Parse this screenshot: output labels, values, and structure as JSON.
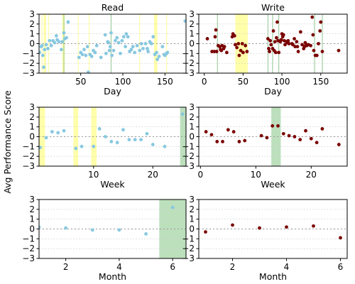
{
  "figure": {
    "ylabel": "Avg Performance Score",
    "colors": {
      "read": "#87c8e0",
      "write": "#7a0000",
      "yellow": "#ffffa0",
      "green": "#b5dcb5",
      "vline_green": "#8fc48f",
      "vline_yellow": "#ffff99"
    }
  },
  "chart_data": [
    {
      "type": "scatter",
      "title": "Read",
      "xlabel": "Day",
      "ylabel": "",
      "xlim": [
        0.5,
        175
      ],
      "ylim": [
        -3,
        3
      ],
      "xticks": [
        50,
        100,
        150
      ],
      "yticks": [
        -3,
        -2,
        -1,
        0,
        1,
        2,
        3
      ],
      "color": "read",
      "bands": [
        {
          "x0": 6,
          "x1": 9,
          "color": "yellow"
        },
        {
          "x0": 28,
          "x1": 31,
          "color": "yellow"
        },
        {
          "x0": 137,
          "x1": 141,
          "color": "yellow"
        }
      ],
      "vlines": [
        {
          "x": 30,
          "color": "vline_green"
        },
        {
          "x": 86,
          "color": "vline_green"
        },
        {
          "x": 4,
          "color": "vline_yellow"
        },
        {
          "x": 12,
          "color": "vline_yellow"
        },
        {
          "x": 47,
          "color": "vline_yellow"
        },
        {
          "x": 60,
          "color": "vline_yellow"
        },
        {
          "x": 120,
          "color": "vline_yellow"
        },
        {
          "x": 152,
          "color": "vline_yellow"
        }
      ],
      "points": [
        [
          1,
          -0.9
        ],
        [
          3,
          -0.3
        ],
        [
          4,
          -0.2
        ],
        [
          5,
          -1.2
        ],
        [
          6,
          -2.4
        ],
        [
          7,
          -0.6
        ],
        [
          9,
          -0.1
        ],
        [
          11,
          -0.5
        ],
        [
          13,
          0.3
        ],
        [
          15,
          -0.2
        ],
        [
          17,
          0.3
        ],
        [
          19,
          0.1
        ],
        [
          21,
          0.8
        ],
        [
          22,
          0.4
        ],
        [
          24,
          0.2
        ],
        [
          27,
          -0.6
        ],
        [
          28,
          0.2
        ],
        [
          30,
          1.1
        ],
        [
          31,
          0.5
        ],
        [
          33,
          0.6
        ],
        [
          35,
          2.2
        ],
        [
          48,
          -1.4
        ],
        [
          50,
          -0.9
        ],
        [
          52,
          -1.1
        ],
        [
          54,
          -0.6
        ],
        [
          56,
          -1.2
        ],
        [
          58,
          -0.3
        ],
        [
          59,
          -2.9
        ],
        [
          61,
          -1.1
        ],
        [
          63,
          -1.3
        ],
        [
          65,
          -0.7
        ],
        [
          67,
          -0.9
        ],
        [
          69,
          -0.2
        ],
        [
          74,
          -1.4
        ],
        [
          79,
          0.9
        ],
        [
          80,
          -1.0
        ],
        [
          82,
          0.2
        ],
        [
          83,
          0.1
        ],
        [
          84,
          -0.7
        ],
        [
          85,
          -0.3
        ],
        [
          86,
          1.1
        ],
        [
          87,
          -1.2
        ],
        [
          89,
          -0.7
        ],
        [
          91,
          0.3
        ],
        [
          93,
          0.6
        ],
        [
          95,
          0.1
        ],
        [
          97,
          -1.0
        ],
        [
          99,
          0.3
        ],
        [
          101,
          0.7
        ],
        [
          103,
          -0.3
        ],
        [
          104,
          1.0
        ],
        [
          106,
          0.7
        ],
        [
          108,
          -0.8
        ],
        [
          110,
          -0.6
        ],
        [
          112,
          -0.3
        ],
        [
          114,
          -0.9
        ],
        [
          117,
          -0.2
        ],
        [
          120,
          -0.7
        ],
        [
          122,
          0.0
        ],
        [
          124,
          -0.5
        ],
        [
          127,
          0.0
        ],
        [
          129,
          -0.5
        ],
        [
          130,
          -0.8
        ],
        [
          132,
          0.2
        ],
        [
          134,
          0.0
        ],
        [
          136,
          0.7
        ],
        [
          138,
          -1.1
        ],
        [
          140,
          -0.9
        ],
        [
          141,
          -1.6
        ],
        [
          143,
          -1.3
        ],
        [
          147,
          -0.3
        ],
        [
          149,
          -1.1
        ],
        [
          150,
          -1.2
        ],
        [
          152,
          -1.0
        ],
        [
          153,
          -0.9
        ],
        [
          174,
          2.3
        ]
      ]
    },
    {
      "type": "scatter",
      "title": "Write",
      "xlabel": "Day",
      "ylabel": "",
      "xlim": [
        -7,
        184
      ],
      "ylim": [
        -3,
        3
      ],
      "xticks": [
        0,
        50,
        100,
        150
      ],
      "yticks": [
        -3,
        -2,
        -1,
        0,
        1,
        2,
        3
      ],
      "color": "write",
      "bands": [
        {
          "x0": 40,
          "x1": 56,
          "color": "yellow"
        }
      ],
      "vlines": [
        {
          "x": 17,
          "color": "vline_green"
        },
        {
          "x": 82,
          "color": "vline_green"
        },
        {
          "x": 88,
          "color": "vline_green"
        },
        {
          "x": 96,
          "color": "vline_green"
        },
        {
          "x": 142,
          "color": "vline_green"
        },
        {
          "x": 152,
          "color": "vline_green"
        }
      ],
      "points": [
        [
          4,
          0.5
        ],
        [
          10,
          -0.8
        ],
        [
          13,
          -0.8
        ],
        [
          14,
          0.7
        ],
        [
          15,
          1.4
        ],
        [
          16,
          -0.8
        ],
        [
          18,
          -0.2
        ],
        [
          20,
          -0.3
        ],
        [
          21,
          -0.6
        ],
        [
          22,
          -0.7
        ],
        [
          23,
          -0.2
        ],
        [
          25,
          -0.5
        ],
        [
          26,
          -0.3
        ],
        [
          29,
          -0.9
        ],
        [
          36,
          0.7
        ],
        [
          37,
          1.0
        ],
        [
          39,
          0.8
        ],
        [
          40,
          -0.1
        ],
        [
          42,
          -0.4
        ],
        [
          44,
          0.0
        ],
        [
          45,
          -1.2
        ],
        [
          47,
          -0.7
        ],
        [
          49,
          0.0
        ],
        [
          50,
          -0.9
        ],
        [
          53,
          -0.2
        ],
        [
          55,
          -0.8
        ],
        [
          82,
          0.5
        ],
        [
          83,
          -0.5
        ],
        [
          84,
          -0.8
        ],
        [
          85,
          0.3
        ],
        [
          86,
          -0.1
        ],
        [
          88,
          -0.5
        ],
        [
          89,
          1.3
        ],
        [
          90,
          -0.7
        ],
        [
          91,
          0.2
        ],
        [
          92,
          -0.9
        ],
        [
          93,
          0.6
        ],
        [
          94,
          2.2
        ],
        [
          95,
          0.3
        ],
        [
          96,
          -0.9
        ],
        [
          98,
          0.2
        ],
        [
          99,
          0.4
        ],
        [
          100,
          1.0
        ],
        [
          101,
          0.7
        ],
        [
          102,
          0.9
        ],
        [
          103,
          0.3
        ],
        [
          104,
          -0.1
        ],
        [
          106,
          0.2
        ],
        [
          107,
          0.1
        ],
        [
          108,
          0.3
        ],
        [
          109,
          0.0
        ],
        [
          113,
          0.0
        ],
        [
          114,
          -0.1
        ],
        [
          116,
          0.5
        ],
        [
          117,
          -0.3
        ],
        [
          119,
          0.2
        ],
        [
          120,
          -0.3
        ],
        [
          121,
          -0.8
        ],
        [
          124,
          1.2
        ],
        [
          126,
          -0.1
        ],
        [
          128,
          -0.5
        ],
        [
          129,
          -0.3
        ],
        [
          130,
          0.1
        ],
        [
          131,
          -0.1
        ],
        [
          132,
          -0.2
        ],
        [
          134,
          -0.1
        ],
        [
          137,
          -0.2
        ],
        [
          139,
          2.7
        ],
        [
          140,
          0.9
        ],
        [
          141,
          -0.7
        ],
        [
          143,
          -1.2
        ],
        [
          145,
          -1.2
        ],
        [
          147,
          0.0
        ],
        [
          149,
          1.3
        ],
        [
          150,
          2.2
        ],
        [
          152,
          -0.8
        ],
        [
          173,
          -0.7
        ]
      ]
    },
    {
      "type": "scatter",
      "title": "",
      "xlabel": "Week",
      "ylabel": "",
      "xlim": [
        0.8,
        25.6
      ],
      "ylim": [
        -3,
        3
      ],
      "xticks": [
        10,
        20
      ],
      "yticks": [
        -3,
        -2,
        -1,
        0,
        1,
        2,
        3
      ],
      "color": "read",
      "bands": [
        {
          "x0": 0.8,
          "x1": 1.8,
          "color": "yellow"
        },
        {
          "x0": 6.6,
          "x1": 7.4,
          "color": "yellow"
        },
        {
          "x0": 9.6,
          "x1": 10.5,
          "color": "yellow"
        },
        {
          "x0": 24.6,
          "x1": 25.6,
          "color": "green"
        }
      ],
      "vlines": [],
      "points": [
        [
          1,
          -1.1
        ],
        [
          2,
          -0.1
        ],
        [
          3,
          0.5
        ],
        [
          4,
          0.4
        ],
        [
          5,
          0.6
        ],
        [
          7,
          -1.2
        ],
        [
          8,
          -1.0
        ],
        [
          10,
          -1.0
        ],
        [
          11,
          0.8
        ],
        [
          12,
          0.0
        ],
        [
          13,
          -0.5
        ],
        [
          14,
          -0.6
        ],
        [
          15,
          0.7
        ],
        [
          16,
          -0.3
        ],
        [
          17,
          -0.3
        ],
        [
          18,
          -0.3
        ],
        [
          19,
          0.3
        ],
        [
          20,
          -0.8
        ],
        [
          22,
          -1.0
        ],
        [
          25,
          2.3
        ]
      ]
    },
    {
      "type": "scatter",
      "title": "",
      "xlabel": "Week",
      "ylabel": "",
      "xlim": [
        -0.3,
        26.5
      ],
      "ylim": [
        -3,
        3
      ],
      "xticks": [
        0,
        10,
        20
      ],
      "yticks": [
        -3,
        -2,
        -1,
        0,
        1,
        2,
        3
      ],
      "color": "write",
      "bands": [
        {
          "x0": 12.8,
          "x1": 14.5,
          "color": "green"
        }
      ],
      "vlines": [],
      "points": [
        [
          1,
          0.5
        ],
        [
          2,
          0.2
        ],
        [
          3,
          -0.5
        ],
        [
          4,
          -0.5
        ],
        [
          5,
          0.7
        ],
        [
          6,
          0.5
        ],
        [
          7,
          -0.5
        ],
        [
          8,
          -0.4
        ],
        [
          11,
          0.1
        ],
        [
          12,
          -0.1
        ],
        [
          13,
          1.1
        ],
        [
          14,
          1.1
        ],
        [
          15,
          0.3
        ],
        [
          16,
          0.1
        ],
        [
          17,
          0.0
        ],
        [
          18,
          -0.3
        ],
        [
          19,
          0.6
        ],
        [
          20,
          -0.2
        ],
        [
          21,
          -0.6
        ],
        [
          22,
          0.8
        ],
        [
          25,
          -0.8
        ]
      ]
    },
    {
      "type": "scatter",
      "title": "",
      "xlabel": "Month",
      "ylabel": "",
      "xlim": [
        1,
        6.5
      ],
      "ylim": [
        -3,
        3
      ],
      "xticks": [
        2,
        4,
        6
      ],
      "yticks": [
        -3,
        -2,
        -1,
        0,
        1,
        2,
        3
      ],
      "color": "read",
      "bands": [
        {
          "x0": 5.5,
          "x1": 6.5,
          "color": "green"
        }
      ],
      "vlines": [],
      "points": [
        [
          1,
          0.2
        ],
        [
          2,
          0.1
        ],
        [
          3,
          -0.1
        ],
        [
          4,
          -0.1
        ],
        [
          5,
          -0.5
        ],
        [
          6,
          2.2
        ]
      ]
    },
    {
      "type": "scatter",
      "title": "",
      "xlabel": "Month",
      "ylabel": "",
      "xlim": [
        0.75,
        6.25
      ],
      "ylim": [
        -3,
        3
      ],
      "xticks": [
        2,
        4,
        6
      ],
      "yticks": [
        -3,
        -2,
        -1,
        0,
        1,
        2,
        3
      ],
      "color": "write",
      "bands": [],
      "vlines": [],
      "points": [
        [
          1,
          -0.3
        ],
        [
          2,
          0.4
        ],
        [
          3,
          0.1
        ],
        [
          4,
          0.2
        ],
        [
          5,
          0.3
        ],
        [
          6,
          -0.9
        ]
      ]
    }
  ]
}
